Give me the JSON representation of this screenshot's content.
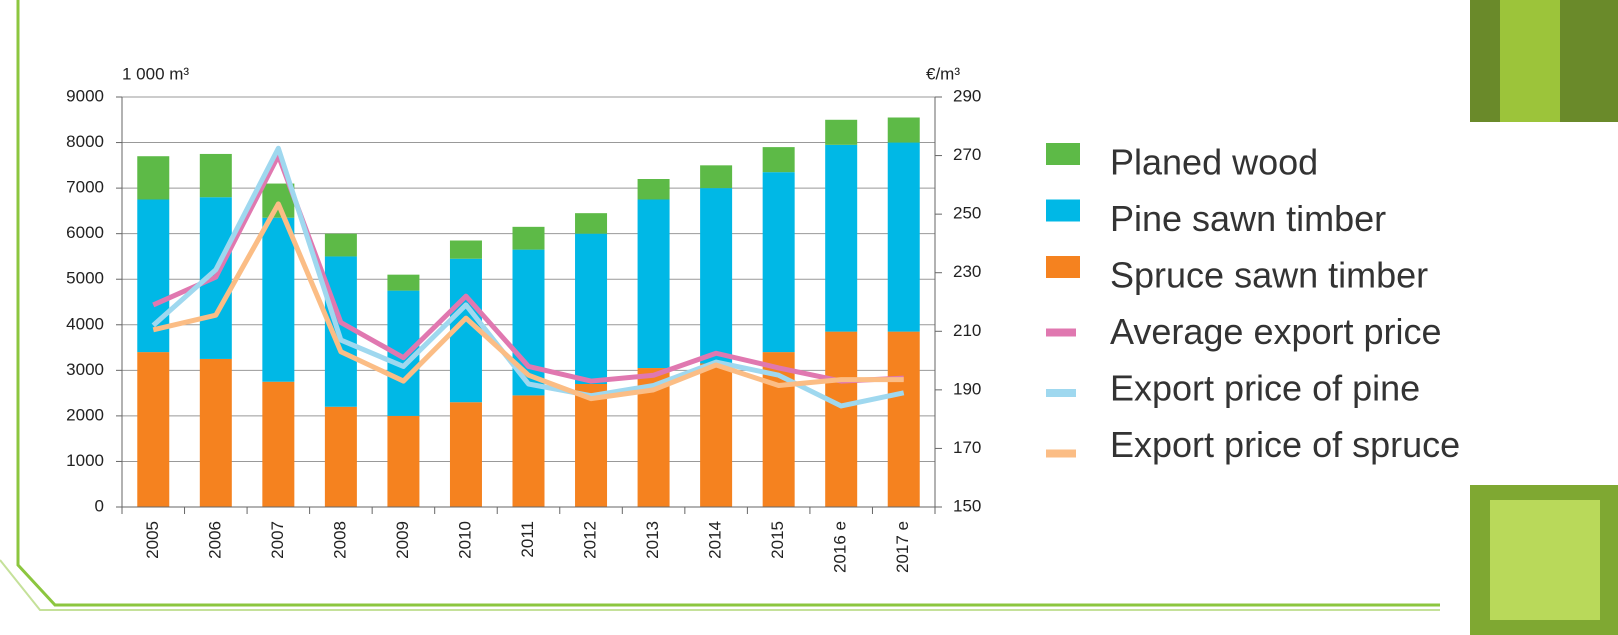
{
  "chart_data": {
    "type": "bar",
    "stacked": true,
    "y_label": "1 000 m³",
    "y2_label": "€/m³",
    "categories": [
      "2005",
      "2006",
      "2007",
      "2008",
      "2009",
      "2010",
      "2011",
      "2012",
      "2013",
      "2014",
      "2015",
      "2016 e",
      "2017 e"
    ],
    "series": [
      {
        "name": "Planed wood",
        "color": "#5dba47",
        "type": "bar",
        "values": [
          950,
          950,
          750,
          500,
          350,
          400,
          500,
          450,
          450,
          500,
          550,
          550,
          550
        ]
      },
      {
        "name": "Pine sawn timber",
        "color": "#00b8e6",
        "type": "bar",
        "values": [
          3350,
          3550,
          3600,
          3300,
          2750,
          3150,
          3200,
          3300,
          3700,
          3850,
          3950,
          4100,
          4150
        ]
      },
      {
        "name": "Spruce sawn timber",
        "color": "#f5821f",
        "type": "bar",
        "values": [
          3400,
          3250,
          2750,
          2200,
          2000,
          2300,
          2450,
          2700,
          3050,
          3150,
          3400,
          3850,
          3850
        ]
      },
      {
        "name": "Average export price",
        "color": "#e078b0",
        "type": "line",
        "axis": "y2",
        "values": [
          219,
          228.5,
          270,
          213,
          201,
          222,
          198,
          193,
          195,
          202.5,
          197.5,
          193,
          194
        ]
      },
      {
        "name": "Export price of pine",
        "color": "#9fd8ef",
        "type": "line",
        "axis": "y2",
        "values": [
          212,
          231,
          272.5,
          207,
          198,
          219,
          192,
          188,
          191.5,
          199.5,
          195,
          184.5,
          189
        ]
      },
      {
        "name": "Export price of spruce",
        "color": "#fbbd85",
        "type": "line",
        "axis": "y2",
        "values": [
          210.5,
          215.5,
          253.5,
          203,
          193,
          214.5,
          195,
          187,
          190,
          198.5,
          191.5,
          193.5,
          193.5
        ]
      }
    ],
    "ylim": [
      0,
      9000
    ],
    "yticks": [
      0,
      1000,
      2000,
      3000,
      4000,
      5000,
      6000,
      7000,
      8000,
      9000
    ],
    "y2lim": [
      150,
      290
    ],
    "y2ticks": [
      150,
      170,
      190,
      210,
      230,
      250,
      270,
      290
    ],
    "grid": true,
    "legend": "right"
  }
}
